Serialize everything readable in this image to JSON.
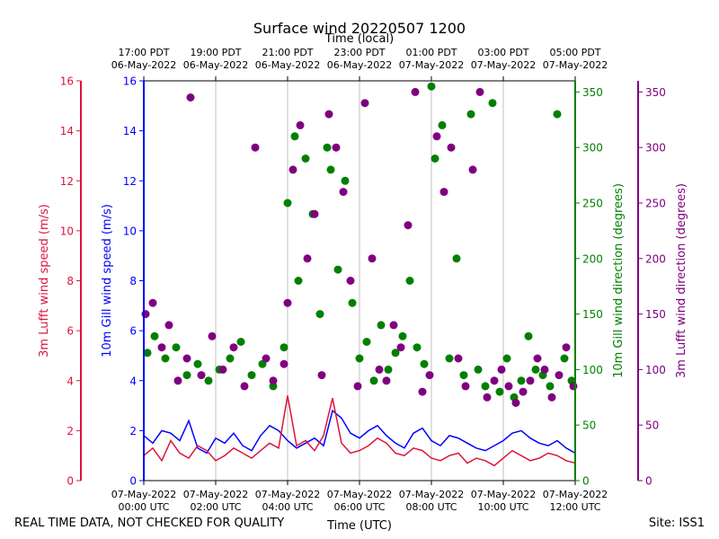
{
  "chart_data": {
    "type": "scatter",
    "title": "Surface wind 20220507 1200",
    "top_axis_title": "Time (local)",
    "xlabel": "Time (UTC)",
    "x_range_hours_utc": [
      0,
      12
    ],
    "bottom_ticks": [
      {
        "hour": 0,
        "date": "07-May-2022",
        "time": "00:00 UTC"
      },
      {
        "hour": 2,
        "date": "07-May-2022",
        "time": "02:00 UTC"
      },
      {
        "hour": 4,
        "date": "07-May-2022",
        "time": "04:00 UTC"
      },
      {
        "hour": 6,
        "date": "07-May-2022",
        "time": "06:00 UTC"
      },
      {
        "hour": 8,
        "date": "07-May-2022",
        "time": "08:00 UTC"
      },
      {
        "hour": 10,
        "date": "07-May-2022",
        "time": "10:00 UTC"
      },
      {
        "hour": 12,
        "date": "07-May-2022",
        "time": "12:00 UTC"
      }
    ],
    "top_ticks": [
      {
        "hour": 0,
        "time": "17:00 PDT",
        "date": "06-May-2022"
      },
      {
        "hour": 2,
        "time": "19:00 PDT",
        "date": "06-May-2022"
      },
      {
        "hour": 4,
        "time": "21:00 PDT",
        "date": "06-May-2022"
      },
      {
        "hour": 6,
        "time": "23:00 PDT",
        "date": "06-May-2022"
      },
      {
        "hour": 8,
        "time": "01:00 PDT",
        "date": "07-May-2022"
      },
      {
        "hour": 10,
        "time": "03:00 PDT",
        "date": "07-May-2022"
      },
      {
        "hour": 12,
        "time": "05:00 PDT",
        "date": "07-May-2022"
      }
    ],
    "axes": [
      {
        "id": "lufft_speed",
        "label": "3m Lufft wind speed (m/s)",
        "color": "#dc143c",
        "range": [
          0,
          16
        ],
        "ticks": [
          "0",
          "2",
          "4",
          "6",
          "8",
          "10",
          "12",
          "14",
          "16"
        ]
      },
      {
        "id": "gill_speed",
        "label": "10m Gill wind speed (m/s)",
        "color": "#0000ff",
        "range": [
          0,
          16
        ],
        "ticks": [
          "0",
          "2",
          "4",
          "6",
          "8",
          "10",
          "12",
          "14",
          "16"
        ]
      },
      {
        "id": "gill_dir",
        "label": "10m Gill wind direction (degrees)",
        "color": "#008000",
        "range": [
          0,
          360
        ],
        "ticks": [
          "0",
          "50",
          "100",
          "150",
          "200",
          "250",
          "300",
          "350"
        ]
      },
      {
        "id": "lufft_dir",
        "label": "3m Lufft wind direction (degrees)",
        "color": "#800080",
        "range": [
          0,
          360
        ],
        "ticks": [
          "0",
          "50",
          "100",
          "150",
          "200",
          "250",
          "300",
          "350"
        ]
      }
    ],
    "series": [
      {
        "name": "10m Gill wind speed",
        "kind": "line",
        "axis": "gill_speed",
        "color": "#0000ff",
        "x": [
          0,
          0.25,
          0.5,
          0.75,
          1,
          1.25,
          1.5,
          1.75,
          2,
          2.25,
          2.5,
          2.75,
          3,
          3.25,
          3.5,
          3.75,
          4,
          4.25,
          4.5,
          4.75,
          5,
          5.25,
          5.5,
          5.75,
          6,
          6.25,
          6.5,
          6.75,
          7,
          7.25,
          7.5,
          7.75,
          8,
          8.25,
          8.5,
          8.75,
          9,
          9.25,
          9.5,
          9.75,
          10,
          10.25,
          10.5,
          10.75,
          11,
          11.25,
          11.5,
          11.75,
          12
        ],
        "values": [
          1.8,
          1.5,
          2.0,
          1.9,
          1.6,
          2.4,
          1.3,
          1.1,
          1.7,
          1.5,
          1.9,
          1.4,
          1.2,
          1.8,
          2.2,
          2.0,
          1.6,
          1.3,
          1.5,
          1.7,
          1.4,
          2.8,
          2.5,
          1.9,
          1.7,
          2.0,
          2.2,
          1.8,
          1.5,
          1.3,
          1.9,
          2.1,
          1.6,
          1.4,
          1.8,
          1.7,
          1.5,
          1.3,
          1.2,
          1.4,
          1.6,
          1.9,
          2.0,
          1.7,
          1.5,
          1.4,
          1.6,
          1.3,
          1.1
        ]
      },
      {
        "name": "3m Lufft wind speed",
        "kind": "line",
        "axis": "lufft_speed",
        "color": "#dc143c",
        "x": [
          0,
          0.25,
          0.5,
          0.75,
          1,
          1.25,
          1.5,
          1.75,
          2,
          2.25,
          2.5,
          2.75,
          3,
          3.25,
          3.5,
          3.75,
          4,
          4.25,
          4.5,
          4.75,
          5,
          5.25,
          5.5,
          5.75,
          6,
          6.25,
          6.5,
          6.75,
          7,
          7.25,
          7.5,
          7.75,
          8,
          8.25,
          8.5,
          8.75,
          9,
          9.25,
          9.5,
          9.75,
          10,
          10.25,
          10.5,
          10.75,
          11,
          11.25,
          11.5,
          11.75,
          12
        ],
        "values": [
          1.0,
          1.3,
          0.8,
          1.6,
          1.1,
          0.9,
          1.4,
          1.2,
          0.8,
          1.0,
          1.3,
          1.1,
          0.9,
          1.2,
          1.5,
          1.3,
          3.4,
          1.4,
          1.6,
          1.2,
          1.8,
          3.3,
          1.5,
          1.1,
          1.2,
          1.4,
          1.7,
          1.5,
          1.1,
          1.0,
          1.3,
          1.2,
          0.9,
          0.8,
          1.0,
          1.1,
          0.7,
          0.9,
          0.8,
          0.6,
          0.9,
          1.2,
          1.0,
          0.8,
          0.9,
          1.1,
          1.0,
          0.8,
          0.7
        ]
      },
      {
        "name": "10m Gill wind direction",
        "kind": "scatter",
        "axis": "gill_dir",
        "color": "#008000",
        "x": [
          0.1,
          0.3,
          0.6,
          0.9,
          1.2,
          1.5,
          1.8,
          2.1,
          2.4,
          2.7,
          3.0,
          3.3,
          3.6,
          3.9,
          4.0,
          4.2,
          4.3,
          4.5,
          4.7,
          4.9,
          5.1,
          5.2,
          5.4,
          5.6,
          5.8,
          6.0,
          6.2,
          6.4,
          6.6,
          6.8,
          7.0,
          7.2,
          7.4,
          7.6,
          7.8,
          8.0,
          8.1,
          8.3,
          8.5,
          8.7,
          8.9,
          9.1,
          9.3,
          9.5,
          9.7,
          9.9,
          10.1,
          10.3,
          10.5,
          10.7,
          10.9,
          11.1,
          11.3,
          11.5,
          11.7,
          11.9
        ],
        "values": [
          115,
          130,
          110,
          120,
          95,
          105,
          90,
          100,
          110,
          125,
          95,
          105,
          85,
          120,
          250,
          310,
          180,
          290,
          240,
          150,
          300,
          280,
          190,
          270,
          160,
          110,
          125,
          90,
          140,
          100,
          115,
          130,
          180,
          120,
          105,
          355,
          290,
          320,
          110,
          200,
          95,
          330,
          100,
          85,
          340,
          80,
          110,
          75,
          90,
          130,
          100,
          95,
          85,
          330,
          110,
          90
        ]
      },
      {
        "name": "3m Lufft wind direction",
        "kind": "scatter",
        "axis": "lufft_dir",
        "color": "#800080",
        "x": [
          0.05,
          0.25,
          0.5,
          0.7,
          0.95,
          1.2,
          1.3,
          1.6,
          1.9,
          2.2,
          2.5,
          2.8,
          3.1,
          3.4,
          3.6,
          3.9,
          4.0,
          4.15,
          4.35,
          4.55,
          4.75,
          4.95,
          5.15,
          5.35,
          5.55,
          5.75,
          5.95,
          6.15,
          6.35,
          6.55,
          6.75,
          6.95,
          7.15,
          7.35,
          7.55,
          7.75,
          7.95,
          8.15,
          8.35,
          8.55,
          8.75,
          8.95,
          9.15,
          9.35,
          9.55,
          9.75,
          9.95,
          10.15,
          10.35,
          10.55,
          10.75,
          10.95,
          11.15,
          11.35,
          11.55,
          11.75,
          11.95
        ],
        "values": [
          150,
          160,
          120,
          140,
          90,
          110,
          345,
          95,
          130,
          100,
          120,
          85,
          300,
          110,
          90,
          105,
          160,
          280,
          320,
          200,
          240,
          95,
          330,
          300,
          260,
          180,
          85,
          340,
          200,
          100,
          90,
          140,
          120,
          230,
          350,
          80,
          95,
          310,
          260,
          300,
          110,
          85,
          280,
          350,
          75,
          90,
          100,
          85,
          70,
          80,
          90,
          110,
          100,
          75,
          95,
          120,
          85
        ]
      }
    ]
  },
  "footer": {
    "left": "REAL TIME DATA, NOT CHECKED FOR QUALITY",
    "right": "Site: ISS1"
  }
}
